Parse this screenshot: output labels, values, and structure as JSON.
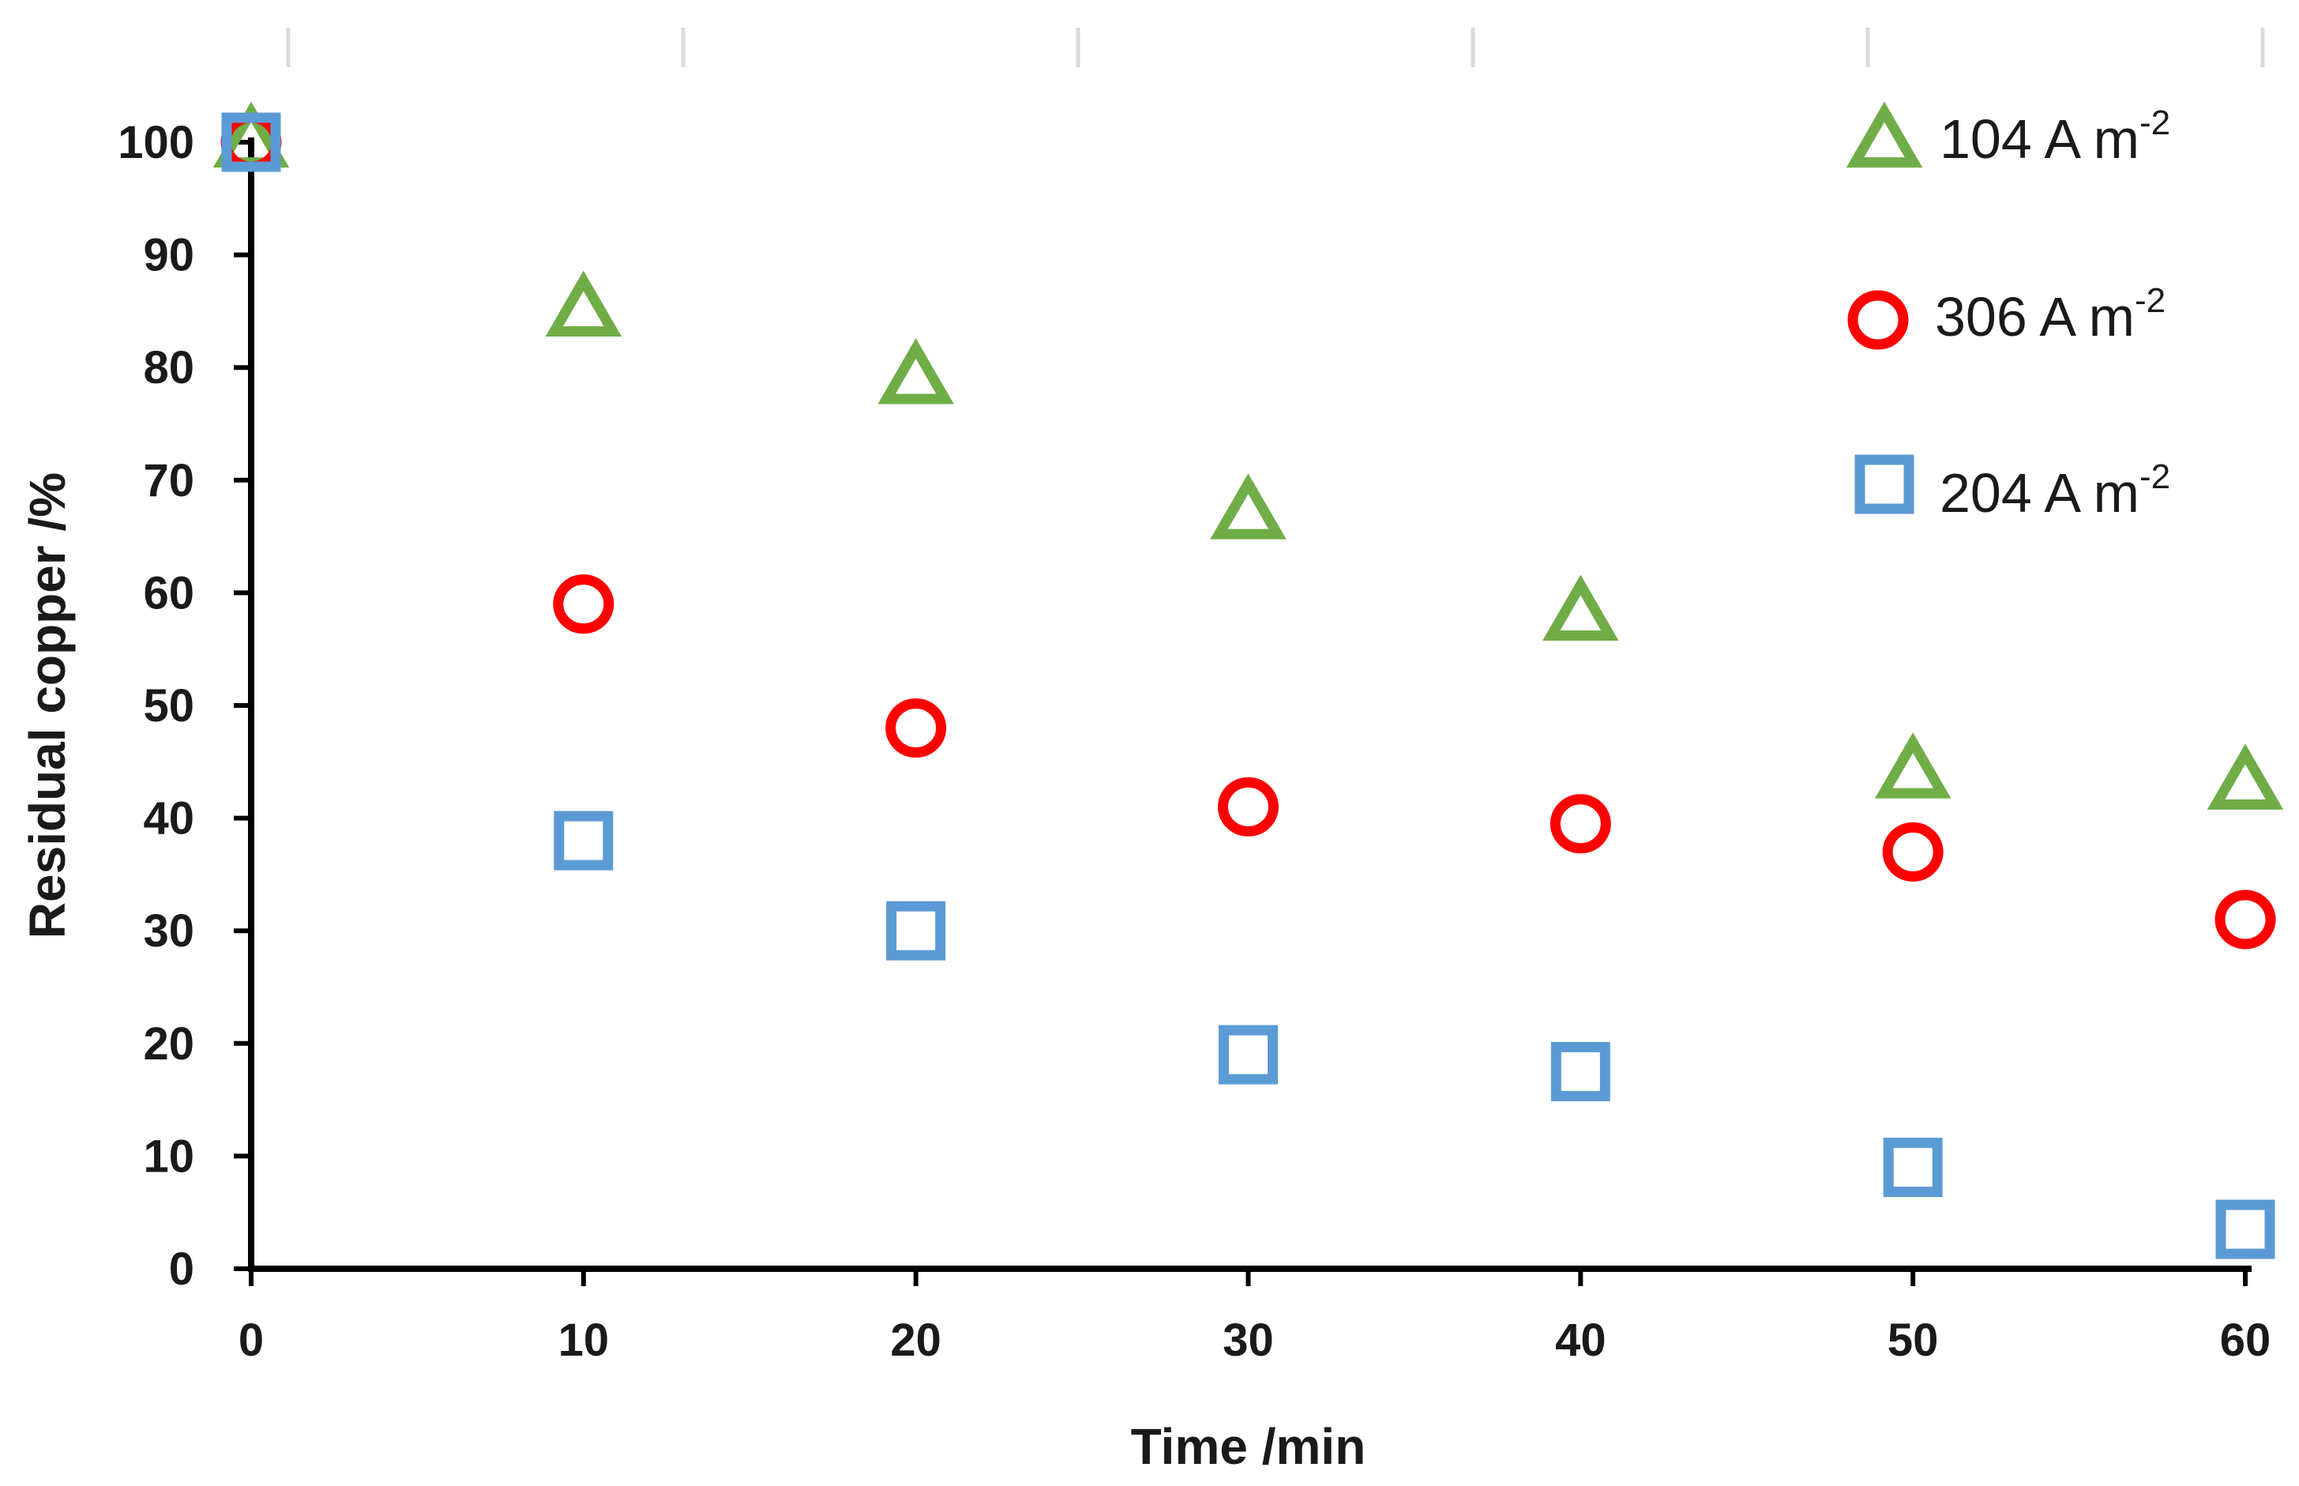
{
  "chart_data": {
    "type": "scatter",
    "title": "",
    "xlabel": "Time /min",
    "ylabel": "Residual copper /%",
    "xlim": [
      0,
      60
    ],
    "ylim": [
      0,
      100
    ],
    "xticks": [
      0,
      10,
      20,
      30,
      40,
      50,
      60
    ],
    "yticks": [
      0,
      10,
      20,
      30,
      40,
      50,
      60,
      70,
      80,
      90,
      100
    ],
    "grid": false,
    "legend_position": "top-right",
    "series": [
      {
        "name": "104 A m",
        "name_sup": "-2",
        "marker": "triangle",
        "color": "#70ad47",
        "x": [
          0,
          10,
          20,
          30,
          40,
          50,
          60
        ],
        "values": [
          100,
          85,
          79,
          67,
          58,
          44,
          43
        ]
      },
      {
        "name": "306 A m",
        "name_sup": "-2",
        "marker": "circle",
        "color": "#ff0000",
        "x": [
          0,
          10,
          20,
          30,
          40,
          50,
          60
        ],
        "values": [
          100,
          59,
          48,
          41,
          39.5,
          37,
          31
        ]
      },
      {
        "name": "204 A m",
        "name_sup": "-2",
        "marker": "square",
        "color": "#5b9bd5",
        "x": [
          0,
          10,
          20,
          30,
          40,
          50,
          60
        ],
        "values": [
          100,
          38,
          30,
          19,
          17.5,
          9,
          3.5
        ]
      }
    ]
  }
}
